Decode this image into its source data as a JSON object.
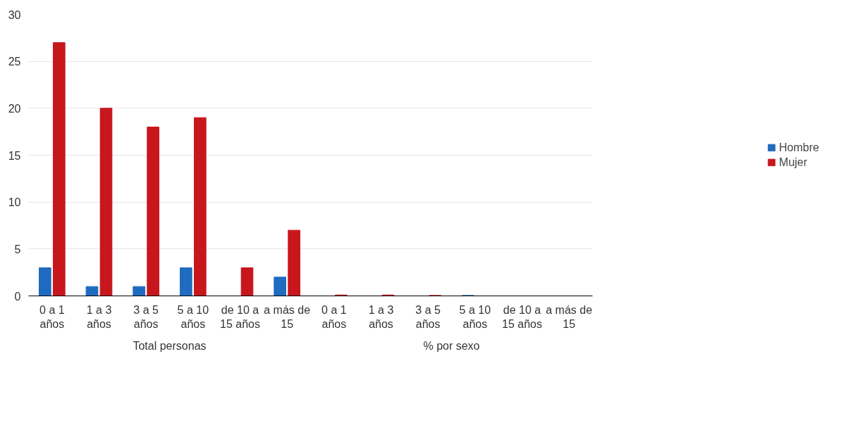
{
  "chart_data": {
    "type": "bar",
    "categories": [
      "0 a 1 años",
      "1 a 3 años",
      "3 a 5 años",
      "5 a 10 años",
      "de 10 a 15 años",
      "a más de 15",
      "0 a 1 años",
      "1 a 3 años",
      "3 a 5 años",
      "5 a 10 años",
      "de 10 a 15 años",
      "a más de 15"
    ],
    "series": [
      {
        "name": "Hombre",
        "color": "#1f6bbf",
        "values": [
          3,
          1,
          1,
          3,
          null,
          2,
          null,
          null,
          null,
          0.05,
          null,
          null
        ]
      },
      {
        "name": "Mujer",
        "color": "#c8161d",
        "values": [
          27,
          20,
          18,
          19,
          3,
          7,
          0.1,
          0.1,
          0.05,
          null,
          null,
          null
        ]
      }
    ],
    "annotations": [
      "Total personas",
      "% por sexo"
    ],
    "ylim": [
      0,
      30
    ],
    "yticks": [
      0,
      5,
      10,
      15,
      20,
      25,
      30
    ],
    "grid": "y",
    "legend": "right"
  }
}
